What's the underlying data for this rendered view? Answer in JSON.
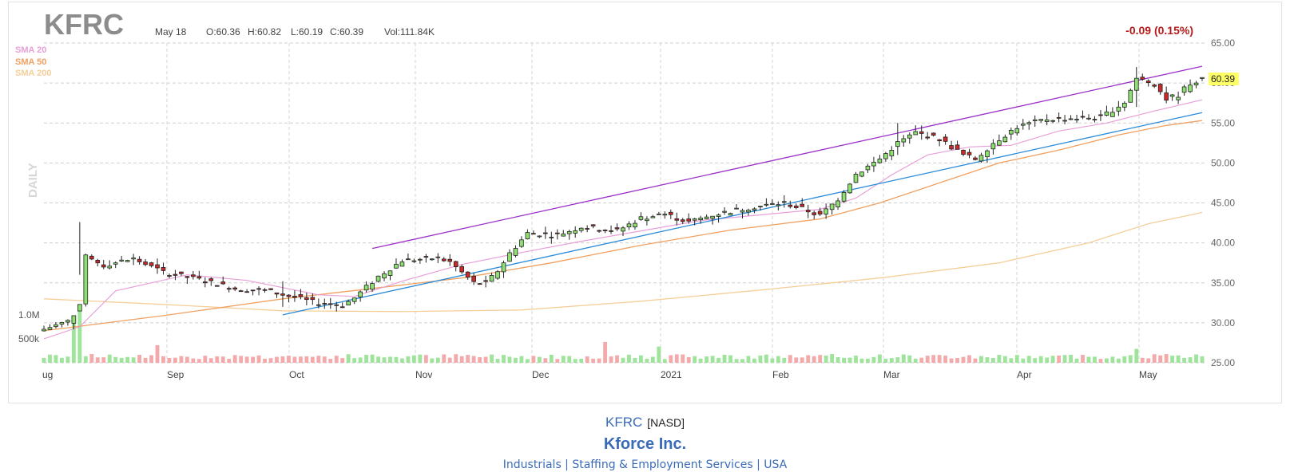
{
  "header": {
    "ticker": "KFRC",
    "date": "May 18",
    "open": "O:60.36",
    "high": "H:60.82",
    "low": "L:60.19",
    "close": "C:60.39",
    "volume": "Vol:111.84K",
    "change": "-0.09 (0.15%)",
    "last_price": "60.39",
    "period": "DAILY"
  },
  "legend": [
    {
      "label": "SMA 20",
      "color": "#e8a0d8"
    },
    {
      "label": "SMA 50",
      "color": "#f0a060"
    },
    {
      "label": "SMA 200",
      "color": "#f5cf9a"
    }
  ],
  "colors": {
    "up": "#8ee070",
    "down": "#cc2a2a",
    "vol_up": "#9ee49a",
    "vol_down": "#f4aaaa",
    "channel_upper": "#9b30c8",
    "channel_lower": "#2a8ad8",
    "change": "#b31b1b",
    "price_tag": "#ffff66"
  },
  "footer": {
    "ticker": "KFRC",
    "exchange": "[NASD]",
    "company": "Kforce Inc.",
    "sector_line": "Industrials | Staffing & Employment Services | USA"
  },
  "chart_data": {
    "type": "candlestick",
    "y_axis": {
      "ticks": [
        "65.00",
        "60.00",
        "55.00",
        "50.00",
        "45.00",
        "40.00",
        "35.00",
        "30.00",
        "25.00"
      ],
      "min": 25,
      "max": 65,
      "position": "right"
    },
    "volume_axis": {
      "ticks": [
        "1.0M",
        "500k"
      ]
    },
    "x_axis": {
      "ticks": [
        "ug",
        "Sep",
        "Oct",
        "Nov",
        "Dec",
        "2021",
        "Feb",
        "Mar",
        "Apr",
        "May"
      ]
    },
    "grid": true,
    "legend_position": "top-left",
    "sessions": 195,
    "anchors": [
      {
        "i": 0,
        "c": 29.2
      },
      {
        "i": 4,
        "c": 30.2
      },
      {
        "i": 6,
        "c": 32.0
      },
      {
        "i": 7,
        "c": 38.2
      },
      {
        "i": 10,
        "c": 37.2
      },
      {
        "i": 15,
        "c": 38.0
      },
      {
        "i": 20,
        "c": 36.3
      },
      {
        "i": 26,
        "c": 35.4
      },
      {
        "i": 32,
        "c": 34.3
      },
      {
        "i": 38,
        "c": 33.9
      },
      {
        "i": 45,
        "c": 32.6
      },
      {
        "i": 50,
        "c": 32.2
      },
      {
        "i": 52,
        "c": 33.1
      },
      {
        "i": 56,
        "c": 35.8
      },
      {
        "i": 60,
        "c": 37.8
      },
      {
        "i": 66,
        "c": 38.1
      },
      {
        "i": 68,
        "c": 37.6
      },
      {
        "i": 72,
        "c": 35.0
      },
      {
        "i": 74,
        "c": 34.9
      },
      {
        "i": 76,
        "c": 36.5
      },
      {
        "i": 78,
        "c": 38.7
      },
      {
        "i": 81,
        "c": 41.2
      },
      {
        "i": 86,
        "c": 41.0
      },
      {
        "i": 90,
        "c": 42.0
      },
      {
        "i": 96,
        "c": 41.5
      },
      {
        "i": 100,
        "c": 43.1
      },
      {
        "i": 104,
        "c": 43.6
      },
      {
        "i": 108,
        "c": 42.6
      },
      {
        "i": 112,
        "c": 43.5
      },
      {
        "i": 118,
        "c": 44.4
      },
      {
        "i": 124,
        "c": 45.0
      },
      {
        "i": 128,
        "c": 44.0
      },
      {
        "i": 130,
        "c": 43.4
      },
      {
        "i": 133,
        "c": 45.5
      },
      {
        "i": 136,
        "c": 48.6
      },
      {
        "i": 140,
        "c": 50.5
      },
      {
        "i": 143,
        "c": 52.5
      },
      {
        "i": 146,
        "c": 53.8
      },
      {
        "i": 150,
        "c": 53.0
      },
      {
        "i": 154,
        "c": 51.0
      },
      {
        "i": 156,
        "c": 50.5
      },
      {
        "i": 159,
        "c": 52.5
      },
      {
        "i": 163,
        "c": 54.5
      },
      {
        "i": 168,
        "c": 55.5
      },
      {
        "i": 173,
        "c": 55.6
      },
      {
        "i": 177,
        "c": 55.7
      },
      {
        "i": 181,
        "c": 57.6
      },
      {
        "i": 183,
        "c": 60.6
      },
      {
        "i": 186,
        "c": 59.9
      },
      {
        "i": 188,
        "c": 58.0
      },
      {
        "i": 190,
        "c": 58.5
      },
      {
        "i": 192,
        "c": 60.0
      },
      {
        "i": 194,
        "c": 60.39
      }
    ],
    "spikes": [
      {
        "i": 6,
        "h": 42.6,
        "l": 36.0
      },
      {
        "i": 40,
        "h": 35.2,
        "l": 32.0
      },
      {
        "i": 143,
        "h": 55.0,
        "l": 51.0
      },
      {
        "i": 183,
        "h": 62.0,
        "l": 57.0
      }
    ],
    "high_volume_days": [
      {
        "i": 5,
        "v": 950000
      },
      {
        "i": 6,
        "v": 1250000
      },
      {
        "i": 19,
        "v": 380000
      },
      {
        "i": 94,
        "v": 450000
      },
      {
        "i": 103,
        "v": 350000
      },
      {
        "i": 183,
        "v": 300000
      }
    ],
    "channel": {
      "upper": [
        {
          "i": 55,
          "y": 39.3
        },
        {
          "i": 194,
          "y": 62.1
        }
      ],
      "lower": [
        {
          "i": 40,
          "y": 31.0
        },
        {
          "i": 194,
          "y": 56.3
        }
      ]
    },
    "sma": {
      "sma20": [
        {
          "i": 0,
          "y": 28.0
        },
        {
          "i": 6,
          "y": 29.5
        },
        {
          "i": 12,
          "y": 34.0
        },
        {
          "i": 24,
          "y": 36.0
        },
        {
          "i": 34,
          "y": 35.3
        },
        {
          "i": 46,
          "y": 33.5
        },
        {
          "i": 52,
          "y": 33.3
        },
        {
          "i": 60,
          "y": 35.2
        },
        {
          "i": 70,
          "y": 37.3
        },
        {
          "i": 80,
          "y": 38.8
        },
        {
          "i": 90,
          "y": 40.2
        },
        {
          "i": 100,
          "y": 41.5
        },
        {
          "i": 110,
          "y": 42.8
        },
        {
          "i": 120,
          "y": 43.5
        },
        {
          "i": 130,
          "y": 44.2
        },
        {
          "i": 136,
          "y": 45.6
        },
        {
          "i": 142,
          "y": 48.5
        },
        {
          "i": 148,
          "y": 51.0
        },
        {
          "i": 155,
          "y": 52.0
        },
        {
          "i": 162,
          "y": 52.2
        },
        {
          "i": 170,
          "y": 54.0
        },
        {
          "i": 178,
          "y": 55.0
        },
        {
          "i": 186,
          "y": 56.5
        },
        {
          "i": 194,
          "y": 57.9
        }
      ],
      "sma50": [
        {
          "i": 0,
          "y": 29.0
        },
        {
          "i": 20,
          "y": 30.9
        },
        {
          "i": 40,
          "y": 33.0
        },
        {
          "i": 55,
          "y": 34.3
        },
        {
          "i": 70,
          "y": 35.6
        },
        {
          "i": 85,
          "y": 37.5
        },
        {
          "i": 100,
          "y": 39.7
        },
        {
          "i": 115,
          "y": 41.6
        },
        {
          "i": 130,
          "y": 43.0
        },
        {
          "i": 140,
          "y": 45.0
        },
        {
          "i": 150,
          "y": 47.5
        },
        {
          "i": 160,
          "y": 50.0
        },
        {
          "i": 170,
          "y": 51.6
        },
        {
          "i": 180,
          "y": 53.5
        },
        {
          "i": 188,
          "y": 54.7
        },
        {
          "i": 194,
          "y": 55.3
        }
      ],
      "sma200": [
        {
          "i": 0,
          "y": 33.0
        },
        {
          "i": 20,
          "y": 32.3
        },
        {
          "i": 40,
          "y": 31.5
        },
        {
          "i": 60,
          "y": 31.4
        },
        {
          "i": 80,
          "y": 31.6
        },
        {
          "i": 100,
          "y": 32.7
        },
        {
          "i": 120,
          "y": 34.1
        },
        {
          "i": 140,
          "y": 35.6
        },
        {
          "i": 160,
          "y": 37.5
        },
        {
          "i": 175,
          "y": 40.0
        },
        {
          "i": 185,
          "y": 42.4
        },
        {
          "i": 194,
          "y": 43.8
        }
      ]
    }
  }
}
